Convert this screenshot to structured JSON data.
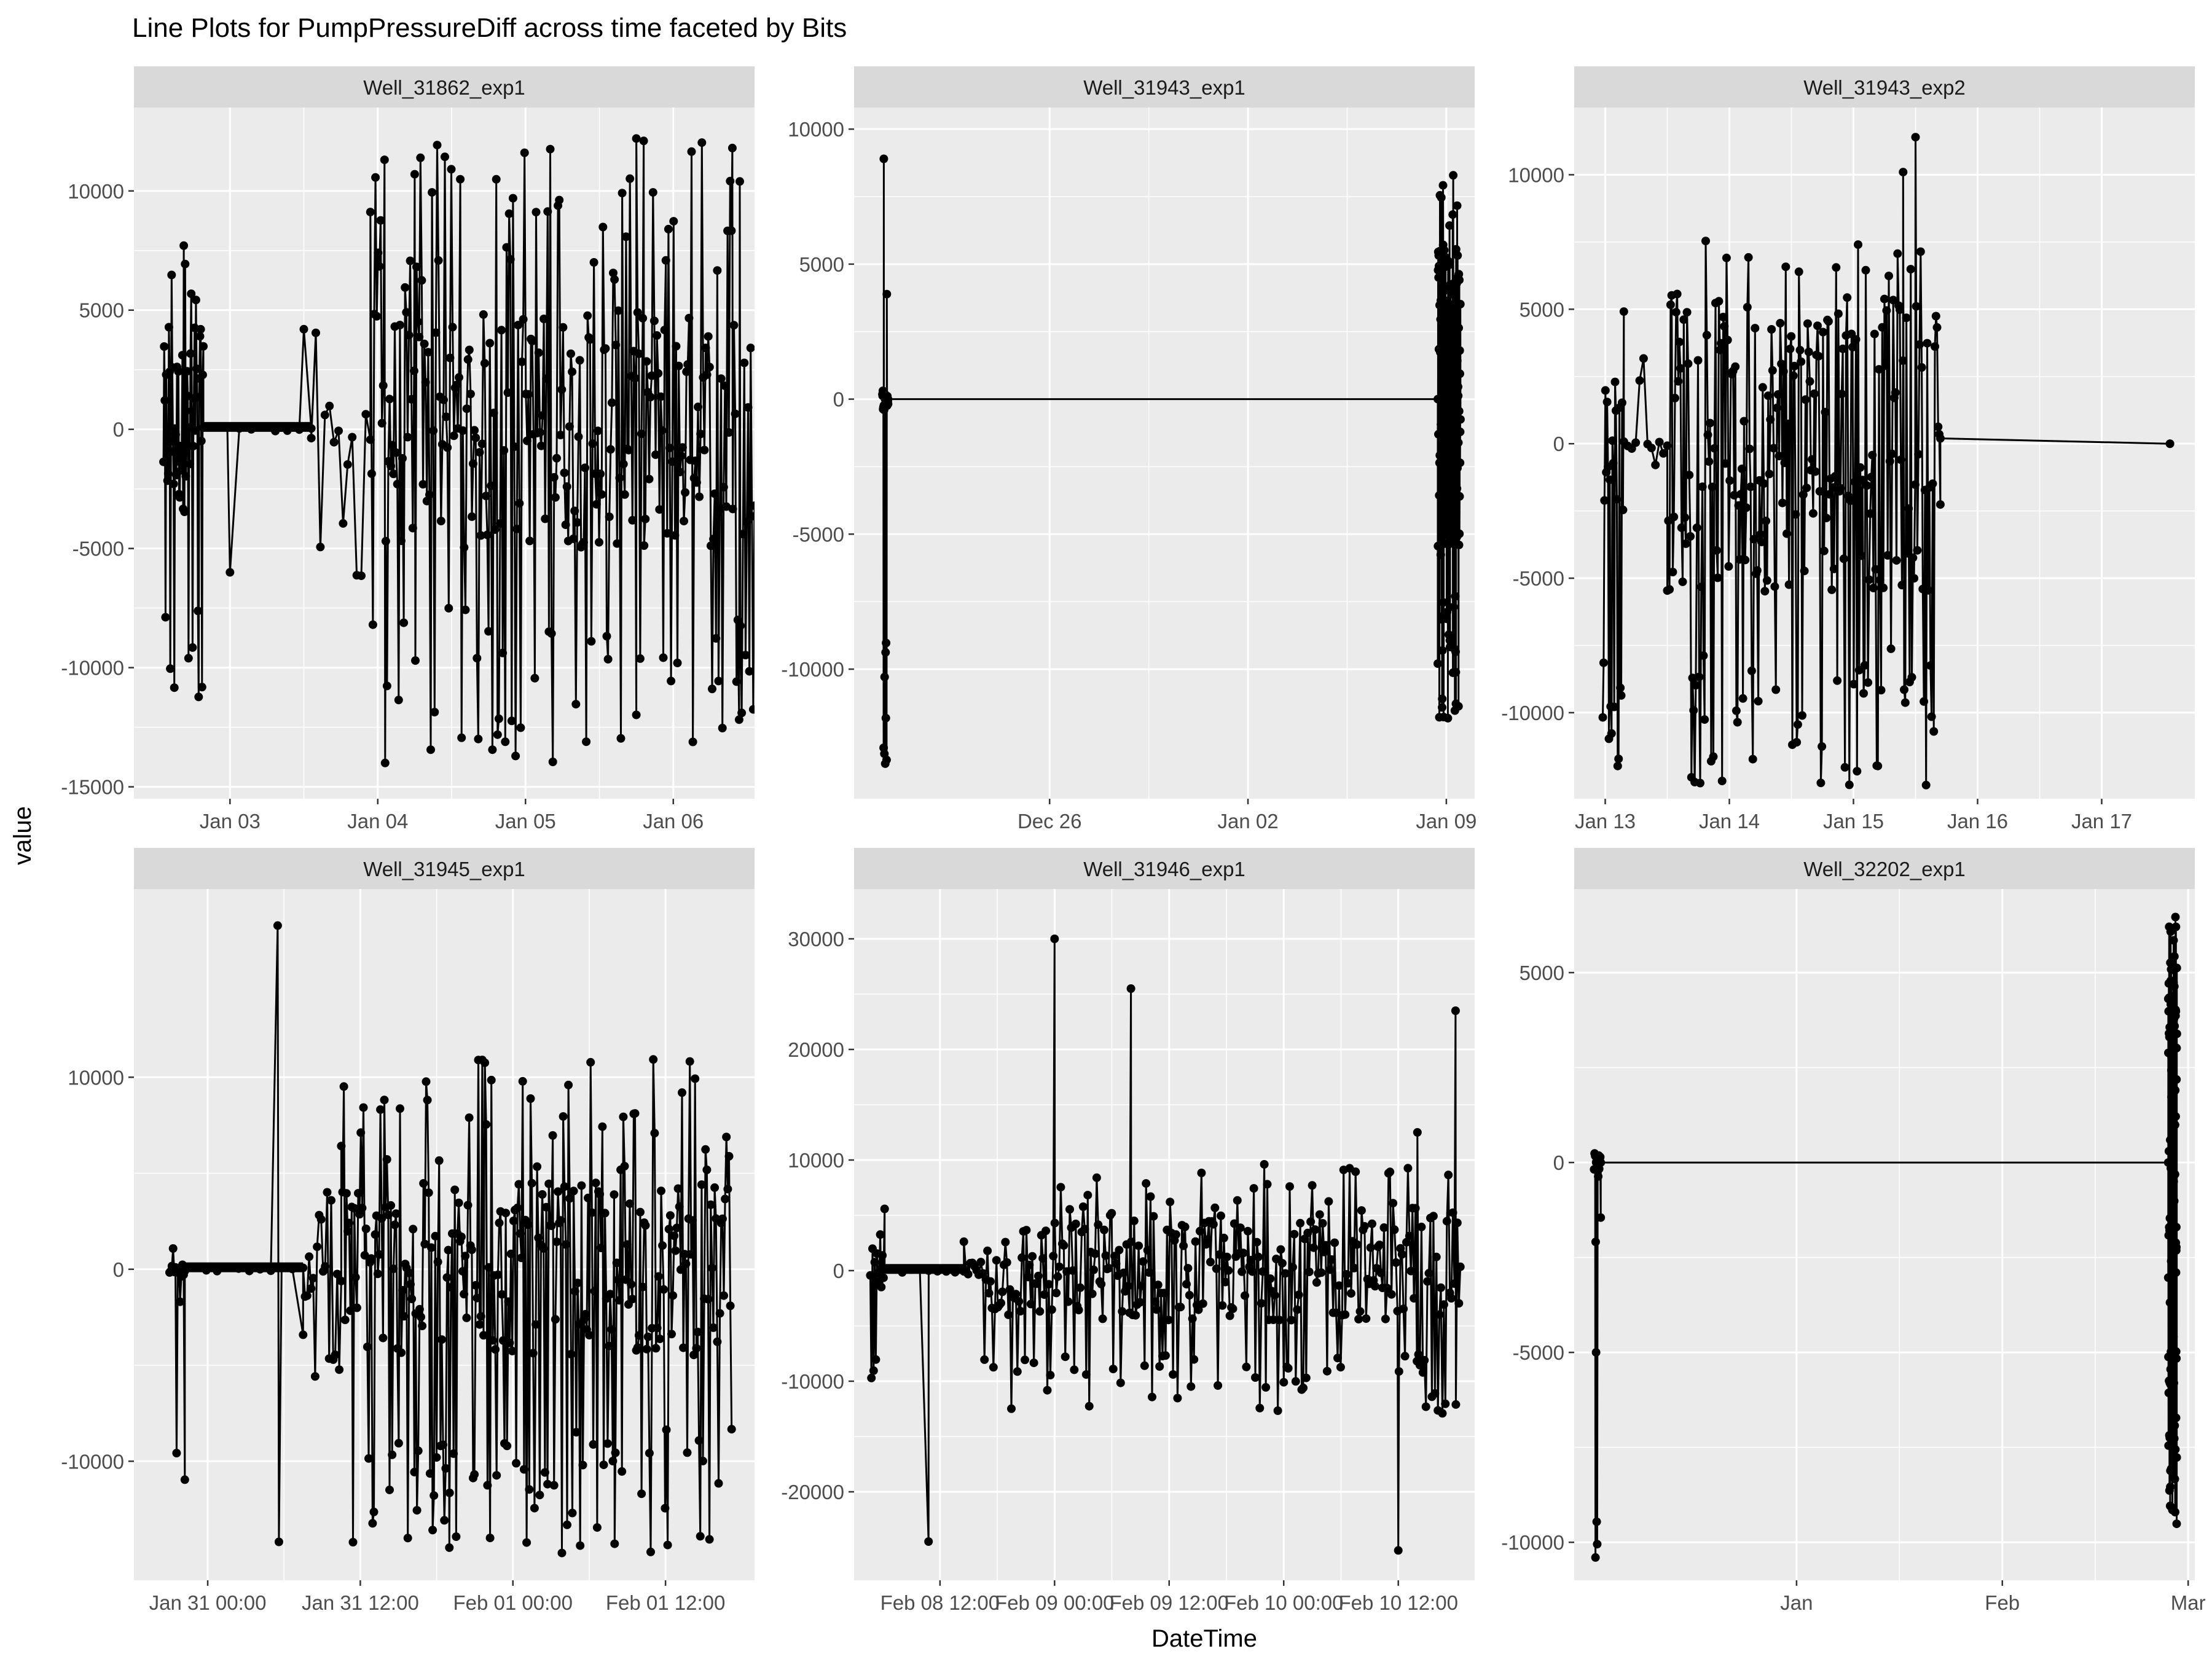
{
  "title": "Line Plots for  PumpPressureDiff  across time faceted by Bits",
  "xlabel": "DateTime",
  "ylabel": "value",
  "colors": {
    "panel_bg": "#EBEBEB",
    "strip_bg": "#D9D9D9",
    "grid": "#FFFFFF",
    "line": "#000000",
    "text": "#4D4D4D",
    "title_text": "#000000"
  },
  "chart_data": [
    {
      "type": "line",
      "title": "Well_31862_exp1",
      "xticks": [
        "Jan 03",
        "Jan 04",
        "Jan 05",
        "Jan 06"
      ],
      "xtick_values": [
        3,
        4,
        5,
        6
      ],
      "xlim": [
        2.35,
        6.55
      ],
      "yticks": [
        10000,
        5000,
        0,
        -5000,
        -10000,
        -15000
      ],
      "ylim": [
        -15500,
        13500
      ],
      "segments": [
        {
          "x_start": 2.55,
          "x_end": 2.82,
          "min": -12500,
          "max": 8400,
          "n": 60,
          "core": 3500
        },
        {
          "x_start": 2.82,
          "x_end": 3.55,
          "min": -100,
          "max": 100,
          "n": 10,
          "core": 100,
          "dense": true
        },
        {
          "x_start": 3.55,
          "x_end": 3.95,
          "min": -6500,
          "max": 5000,
          "n": 14,
          "core": 1500
        },
        {
          "x_start": 3.95,
          "x_end": 6.55,
          "min": -14000,
          "max": 12200,
          "n": 300,
          "core": 5000
        }
      ],
      "series": [
        {
          "name": "spikes",
          "x": [
            3.0,
            3.5,
            4.05,
            4.25,
            5.75,
            5.8,
            6.4,
            6.45
          ],
          "y": [
            -6000,
            4200,
            -14000,
            10700,
            12200,
            12100,
            11800,
            10400
          ]
        }
      ]
    },
    {
      "type": "line",
      "title": "Well_31943_exp1",
      "xticks": [
        "Dec 26",
        "Jan 02",
        "Jan 09"
      ],
      "xtick_values": [
        26,
        33,
        40
      ],
      "xlim": [
        19.1,
        41.0
      ],
      "yticks": [
        10000,
        5000,
        0,
        -5000,
        -10000
      ],
      "ylim": [
        -14800,
        10800
      ],
      "segments": [
        {
          "x_start": 20.1,
          "x_end": 20.3,
          "min": -13500,
          "max": 8900,
          "n": 24,
          "core": 400
        },
        {
          "x_start": 20.3,
          "x_end": 39.7,
          "min": 0,
          "max": 0,
          "n": 2,
          "core": 0
        },
        {
          "x_start": 39.7,
          "x_end": 40.5,
          "min": -12000,
          "max": 8300,
          "n": 150,
          "core": 6000
        }
      ],
      "series": [
        {
          "name": "spikes",
          "x": [
            20.15,
            20.2
          ],
          "y": [
            8900,
            -13500
          ]
        }
      ]
    },
    {
      "type": "line",
      "title": "Well_31943_exp2",
      "xticks": [
        "Jan 13",
        "Jan 14",
        "Jan 15",
        "Jan 16",
        "Jan 17"
      ],
      "xtick_values": [
        13,
        14,
        15,
        16,
        17
      ],
      "xlim": [
        12.75,
        17.75
      ],
      "yticks": [
        10000,
        5000,
        0,
        -5000,
        -10000
      ],
      "ylim": [
        -13200,
        12500
      ],
      "segments": [
        {
          "x_start": 12.98,
          "x_end": 13.15,
          "min": -12300,
          "max": 6900,
          "n": 25,
          "core": 2500
        },
        {
          "x_start": 13.15,
          "x_end": 13.5,
          "min": -1500,
          "max": 3500,
          "n": 12,
          "core": 200
        },
        {
          "x_start": 13.5,
          "x_end": 15.7,
          "min": -12700,
          "max": 7700,
          "n": 250,
          "core": 5500
        },
        {
          "x_start": 15.7,
          "x_end": 17.55,
          "min": 0,
          "max": 400,
          "n": 2,
          "core": 300
        }
      ],
      "series": [
        {
          "name": "spikes",
          "x": [
            15.4,
            15.5,
            17.55
          ],
          "y": [
            10100,
            11400,
            0
          ]
        }
      ]
    },
    {
      "type": "line",
      "title": "Well_31945_exp1",
      "xticks": [
        "Jan 31 00:00",
        "Jan 31 12:00",
        "Feb 01 00:00",
        "Feb 01 12:00"
      ],
      "xtick_values": [
        0,
        12,
        24,
        36
      ],
      "xlim": [
        -5.8,
        43.0
      ],
      "yticks": [
        10000,
        0,
        -10000
      ],
      "ylim": [
        -16200,
        19800
      ],
      "segments": [
        {
          "x_start": -3.0,
          "x_end": -1.8,
          "min": -12000,
          "max": 1500,
          "n": 14,
          "core": 400
        },
        {
          "x_start": -1.8,
          "x_end": 7.5,
          "min": -100,
          "max": 100,
          "n": 12,
          "core": 100,
          "dense": true
        },
        {
          "x_start": 7.5,
          "x_end": 10.5,
          "min": -6000,
          "max": 4500,
          "n": 20,
          "core": 1500
        },
        {
          "x_start": 10.5,
          "x_end": 41.2,
          "min": -14800,
          "max": 11500,
          "n": 300,
          "core": 4500
        }
      ],
      "series": [
        {
          "name": "spikes",
          "x": [
            5.5,
            5.6,
            19.0,
            32.0
          ],
          "y": [
            17900,
            -14200,
            -14500,
            -14300
          ]
        }
      ]
    },
    {
      "type": "line",
      "title": "Well_31946_exp1",
      "xticks": [
        "Feb 08 12:00",
        "Feb 09 00:00",
        "Feb 09 12:00",
        "Feb 10 00:00",
        "Feb 10 12:00"
      ],
      "xtick_values": [
        12,
        24,
        36,
        48,
        60
      ],
      "xlim": [
        3.0,
        68.0
      ],
      "yticks": [
        30000,
        20000,
        10000,
        0,
        -10000,
        -20000
      ],
      "ylim": [
        -28000,
        34500
      ],
      "segments": [
        {
          "x_start": 4.7,
          "x_end": 6.2,
          "min": -11500,
          "max": 8000,
          "n": 14,
          "core": 2000
        },
        {
          "x_start": 6.2,
          "x_end": 14.5,
          "min": -200,
          "max": 200,
          "n": 10,
          "core": 150,
          "dense": true
        },
        {
          "x_start": 14.5,
          "x_end": 16.5,
          "min": -4000,
          "max": 3000,
          "n": 10,
          "core": 1000
        },
        {
          "x_start": 16.5,
          "x_end": 66.5,
          "min": -13000,
          "max": 10000,
          "n": 320,
          "core": 4500
        }
      ],
      "series": [
        {
          "name": "spikes",
          "x": [
            10.8,
            24.0,
            32.0,
            60.0,
            62.0,
            66.0
          ],
          "y": [
            -24500,
            30000,
            25500,
            -25300,
            12500,
            23500
          ]
        }
      ]
    },
    {
      "type": "line",
      "title": "Well_32202_exp1",
      "xticks": [
        "Jan",
        "Feb",
        "Mar"
      ],
      "xtick_values": [
        31,
        62,
        90
      ],
      "xlim": [
        -2.5,
        91.0
      ],
      "yticks": [
        5000,
        0,
        -5000,
        -10000
      ],
      "ylim": [
        -11000,
        7200
      ],
      "segments": [
        {
          "x_start": 0.5,
          "x_end": 1.5,
          "min": -10400,
          "max": 500,
          "n": 14,
          "core": 300
        },
        {
          "x_start": 1.5,
          "x_end": 87.0,
          "min": 0,
          "max": 0,
          "n": 2,
          "core": 0
        },
        {
          "x_start": 87.0,
          "x_end": 88.3,
          "min": -9700,
          "max": 6800,
          "n": 120,
          "core": 5500
        }
      ],
      "series": [
        {
          "name": "spikes",
          "x": [
            0.7,
            0.8
          ],
          "y": [
            -10400,
            -5000
          ]
        }
      ]
    }
  ]
}
